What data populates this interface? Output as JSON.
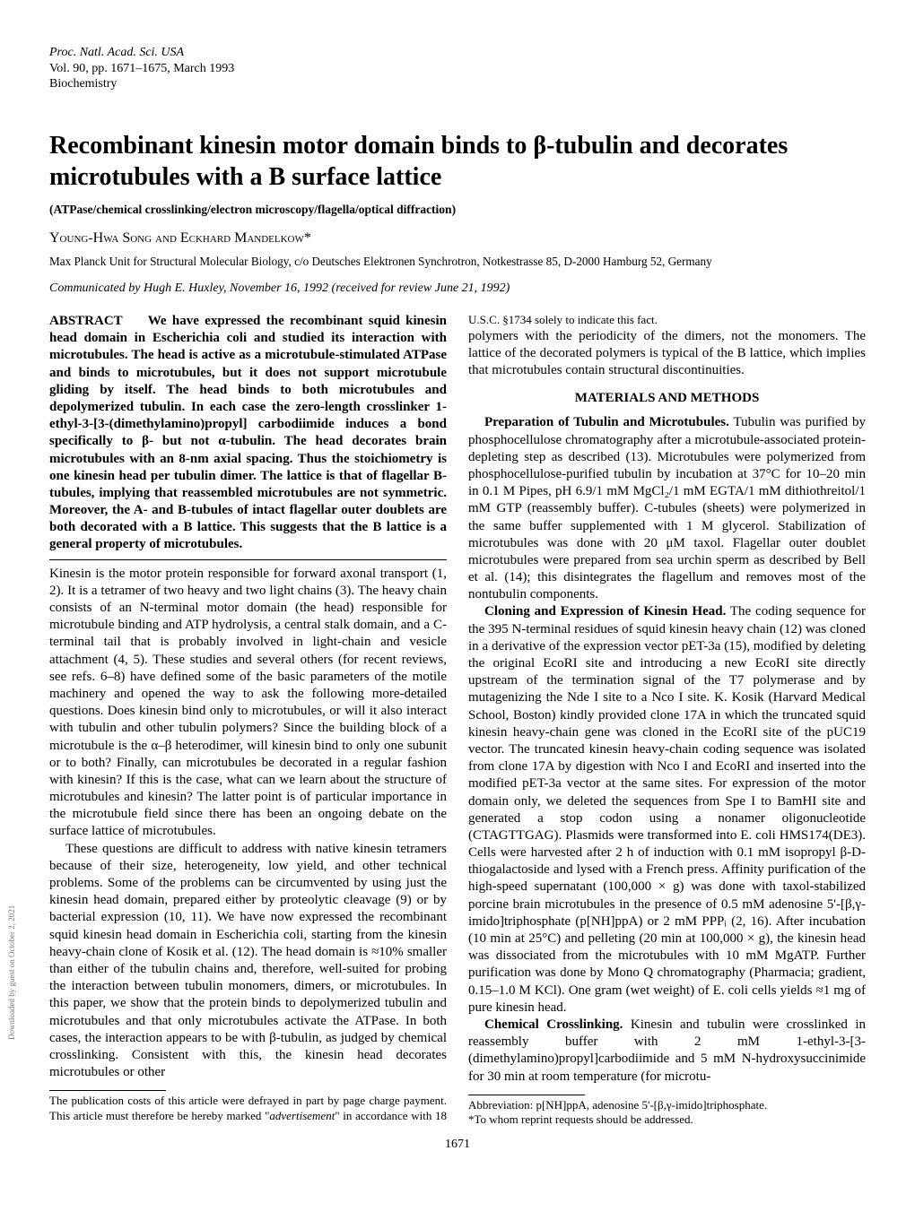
{
  "journal": {
    "line1": "Proc. Natl. Acad. Sci. USA",
    "line2": "Vol. 90, pp. 1671–1675, March 1993",
    "line3": "Biochemistry"
  },
  "title": "Recombinant kinesin motor domain binds to β-tubulin and decorates microtubules with a B surface lattice",
  "keywords": "(ATPase/chemical crosslinking/electron microscopy/flagella/optical diffraction)",
  "authors": "Young-Hwa Song and Eckhard Mandelkow*",
  "affiliation": "Max Planck Unit for Structural Molecular Biology, c/o Deutsches Elektronen Synchrotron, Notkestrasse 85, D-2000 Hamburg 52, Germany",
  "communicated": "Communicated by Hugh E. Huxley, November 16, 1992 (received for review June 21, 1992)",
  "abstract": {
    "heading": "ABSTRACT",
    "text": "We have expressed the recombinant squid kinesin head domain in Escherichia coli and studied its interaction with microtubules. The head is active as a microtubule-stimulated ATPase and binds to microtubules, but it does not support microtubule gliding by itself. The head binds to both microtubules and depolymerized tubulin. In each case the zero-length crosslinker 1-ethyl-3-[3-(dimethylamino)propyl] carbodiimide induces a bond specifically to β- but not α-tubulin. The head decorates brain microtubules with an 8-nm axial spacing. Thus the stoichiometry is one kinesin head per tubulin dimer. The lattice is that of flagellar B-tubules, implying that reassembled microtubules are not symmetric. Moreover, the A- and B-tubules of intact flagellar outer doublets are both decorated with a B lattice. This suggests that the B lattice is a general property of microtubules."
  },
  "intro": {
    "p1": "Kinesin is the motor protein responsible for forward axonal transport (1, 2). It is a tetramer of two heavy and two light chains (3). The heavy chain consists of an N-terminal motor domain (the head) responsible for microtubule binding and ATP hydrolysis, a central stalk domain, and a C-terminal tail that is probably involved in light-chain and vesicle attachment (4, 5). These studies and several others (for recent reviews, see refs. 6–8) have defined some of the basic parameters of the motile machinery and opened the way to ask the following more-detailed questions. Does kinesin bind only to microtubules, or will it also interact with tubulin and other tubulin polymers? Since the building block of a microtubule is the α–β heterodimer, will kinesin bind to only one subunit or to both? Finally, can microtubules be decorated in a regular fashion with kinesin? If this is the case, what can we learn about the structure of microtubules and kinesin? The latter point is of particular importance in the microtubule field since there has been an ongoing debate on the surface lattice of microtubules.",
    "p2": "These questions are difficult to address with native kinesin tetramers because of their size, heterogeneity, low yield, and other technical problems. Some of the problems can be circumvented by using just the kinesin head domain, prepared either by proteolytic cleavage (9) or by bacterial expression (10, 11). We have now expressed the recombinant squid kinesin head domain in Escherichia coli, starting from the kinesin heavy-chain clone of Kosik et al. (12). The head domain is ≈10% smaller than either of the tubulin chains and, therefore, well-suited for probing the interaction between tubulin monomers, dimers, or microtubules. In this paper, we show that the protein binds to depolymerized tubulin and microtubules and that only microtubules activate the ATPase. In both cases, the interaction appears to be with β-tubulin, as judged by chemical crosslinking. Consistent with this, the kinesin head decorates microtubules or other"
  },
  "col2_top": "polymers with the periodicity of the dimers, not the monomers. The lattice of the decorated polymers is typical of the B lattice, which implies that microtubules contain structural discontinuities.",
  "methods_heading": "MATERIALS AND METHODS",
  "methods": {
    "p1_lead": "Preparation of Tubulin and Microtubules.",
    "p1": " Tubulin was purified by phosphocellulose chromatography after a microtubule-associated protein-depleting step as described (13). Microtubules were polymerized from phosphocellulose-purified tubulin by incubation at 37°C for 10–20 min in 0.1 M Pipes, pH 6.9/1 mM MgCl₂/1 mM EGTA/1 mM dithiothreitol/1 mM GTP (reassembly buffer). C-tubules (sheets) were polymerized in the same buffer supplemented with 1 M glycerol. Stabilization of microtubules was done with 20 μM taxol. Flagellar outer doublet microtubules were prepared from sea urchin sperm as described by Bell et al. (14); this disintegrates the flagellum and removes most of the nontubulin components.",
    "p2_lead": "Cloning and Expression of Kinesin Head.",
    "p2": " The coding sequence for the 395 N-terminal residues of squid kinesin heavy chain (12) was cloned in a derivative of the expression vector pET-3a (15), modified by deleting the original EcoRI site and introducing a new EcoRI site directly upstream of the termination signal of the T7 polymerase and by mutagenizing the Nde I site to a Nco I site. K. Kosik (Harvard Medical School, Boston) kindly provided clone 17A in which the truncated squid kinesin heavy-chain gene was cloned in the EcoRI site of the pUC19 vector. The truncated kinesin heavy-chain coding sequence was isolated from clone 17A by digestion with Nco I and EcoRI and inserted into the modified pET-3a vector at the same sites. For expression of the motor domain only, we deleted the sequences from Spe I to BamHI site and generated a stop codon using a nonamer oligonucleotide (CTAGTTGAG). Plasmids were transformed into E. coli HMS174(DE3). Cells were harvested after 2 h of induction with 0.1 mM isopropyl β-D-thiogalactoside and lysed with a French press. Affinity purification of the high-speed supernatant (100,000 × g) was done with taxol-stabilized porcine brain microtubules in the presence of 0.5 mM adenosine 5'-[β,γ-imido]triphosphate (p[NH]ppA) or 2 mM PPPᵢ (2, 16). After incubation (10 min at 25°C) and pelleting (20 min at 100,000 × g), the kinesin head was dissociated from the microtubules with 10 mM MgATP. Further purification was done by Mono Q chromatography (Pharmacia; gradient, 0.15–1.0 M KCl). One gram (wet weight) of E. coli cells yields ≈1 mg of pure kinesin head.",
    "p3_lead": "Chemical Crosslinking.",
    "p3": " Kinesin and tubulin were crosslinked in reassembly buffer with 2 mM 1-ethyl-3-[3-(dimethylamino)propyl]carbodiimide and 5 mM N-hydroxysuccinimide for 30 min at room temperature (for microtu-"
  },
  "footnote_left": "The publication costs of this article were defrayed in part by page charge payment. This article must therefore be hereby marked “advertisement” in accordance with 18 U.S.C. §1734 solely to indicate this fact.",
  "footnote_right_1": "Abbreviation: p[NH]ppA, adenosine 5'-[β,γ-imido]triphosphate.",
  "footnote_right_2": "*To whom reprint requests should be addressed.",
  "page_number": "1671",
  "rail_text": "Downloaded by guest on October 2, 2021"
}
